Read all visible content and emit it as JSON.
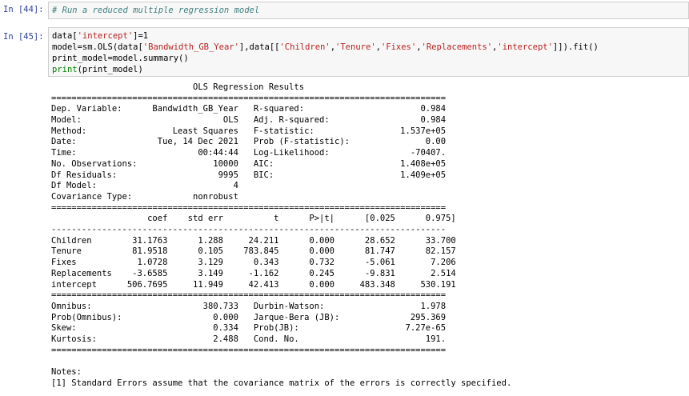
{
  "cell1": {
    "prompt": "In [44]:",
    "code": "# Run a reduced multiple regression model"
  },
  "cell2": {
    "prompt": "In [45]:",
    "line1": {
      "a": "data[",
      "s1": "'intercept'",
      "b": "]=1"
    },
    "line2": {
      "a": "model=sm.OLS(data[",
      "s1": "'Bandwidth_GB_Year'",
      "b": "],data[[",
      "s2": "'Children'",
      "c": ",",
      "s3": "'Tenure'",
      "d": ",",
      "s4": "'Fixes'",
      "e": ",",
      "s5": "'Replacements'",
      "f": ",",
      "s6": "'intercept'",
      "g": "]]).fit()"
    },
    "line3": "print_model=model.summary()",
    "line4": {
      "kw": "print",
      "rest": "(print_model)"
    }
  },
  "output": {
    "title": "                            OLS Regression Results                            ",
    "sep_eq": "==============================================================================",
    "sep_dash": "------------------------------------------------------------------------------",
    "top": [
      "Dep. Variable:      Bandwidth_GB_Year   R-squared:                       0.984",
      "Model:                            OLS   Adj. R-squared:                  0.984",
      "Method:                 Least Squares   F-statistic:                 1.537e+05",
      "Date:                Tue, 14 Dec 2021   Prob (F-statistic):               0.00",
      "Time:                        00:44:44   Log-Likelihood:                -70407.",
      "No. Observations:               10000   AIC:                         1.408e+05",
      "Df Residuals:                    9995   BIC:                         1.409e+05",
      "Df Model:                           4                                         ",
      "Covariance Type:            nonrobust                                         "
    ],
    "coef_header": "                   coef    std err          t      P>|t|      [0.025      0.975]",
    "coef_rows": [
      "Children        31.1763      1.288     24.211      0.000      28.652      33.700",
      "Tenure          81.9518      0.105    783.845      0.000      81.747      82.157",
      "Fixes            1.0728      3.129      0.343      0.732      -5.061       7.206",
      "Replacements    -3.6585      3.149     -1.162      0.245      -9.831       2.514",
      "intercept      506.7695     11.949     42.413      0.000     483.348     530.191"
    ],
    "bottom": [
      "Omnibus:                      380.733   Durbin-Watson:                   1.978",
      "Prob(Omnibus):                  0.000   Jarque-Bera (JB):              295.369",
      "Skew:                           0.334   Prob(JB):                     7.27e-65",
      "Kurtosis:                       2.488   Cond. No.                         191."
    ],
    "notes_title": "Notes:",
    "note1": "[1] Standard Errors assume that the covariance matrix of the errors is correctly specified."
  }
}
